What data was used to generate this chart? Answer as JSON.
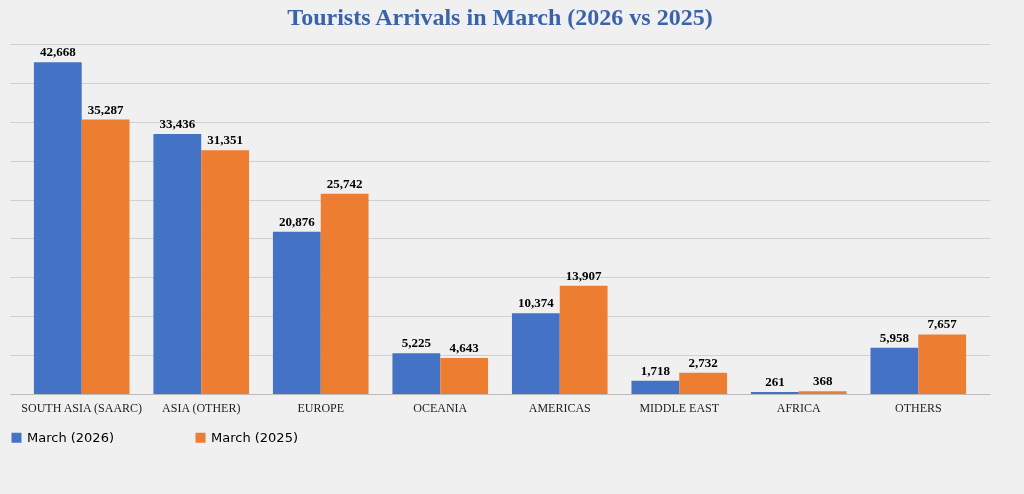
{
  "chart_data": {
    "type": "bar",
    "title": "Tourists Arrivals in March (2026 vs 2025)",
    "categories": [
      "SOUTH ASIA (SAARC)",
      "ASIA (OTHER)",
      "EUROPE",
      "OCEANIA",
      "AMERICAS",
      "MIDDLE EAST",
      "AFRICA",
      "OTHERS"
    ],
    "series": [
      {
        "name": "March (2026)",
        "color": "#4472c4",
        "values": [
          42668,
          33436,
          20876,
          5225,
          10374,
          1718,
          261,
          5958
        ],
        "value_labels": [
          "42,668",
          "33,436",
          "20,876",
          "5,225",
          "10,374",
          "1,718",
          "261",
          "5,958"
        ]
      },
      {
        "name": "March (2025)",
        "color": "#ed7d31",
        "values": [
          35287,
          31351,
          25742,
          4643,
          13907,
          2732,
          368,
          7657
        ],
        "value_labels": [
          "35,287",
          "31,351",
          "25,742",
          "4,643",
          "13,907",
          "2,732",
          "368",
          "7,657"
        ]
      }
    ],
    "tick_labels": "x",
    "grid": "y",
    "legend": "bottom"
  }
}
